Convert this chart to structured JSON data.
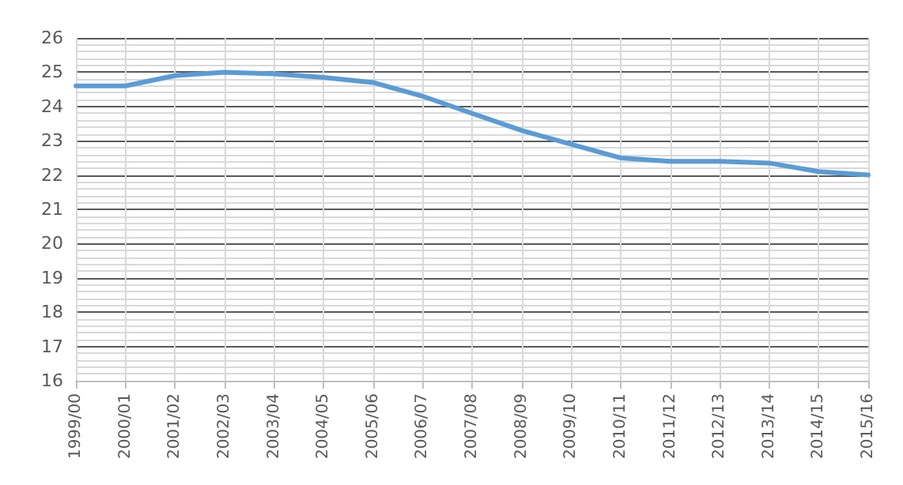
{
  "chart_data": {
    "type": "line",
    "categories": [
      "1999/00",
      "2000/01",
      "2001/02",
      "2002/03",
      "2003/04",
      "2004/05",
      "2005/06",
      "2006/07",
      "2007/08",
      "2008/09",
      "2009/10",
      "2010/11",
      "2011/12",
      "2012/13",
      "2013/14",
      "2014/15",
      "2015/16"
    ],
    "series": [
      {
        "color": "#5b9bd5",
        "values": [
          24.6,
          24.6,
          24.9,
          25.0,
          24.95,
          24.85,
          24.7,
          24.3,
          23.8,
          23.3,
          22.9,
          22.5,
          22.4,
          22.4,
          22.35,
          22.1,
          22.0
        ]
      }
    ],
    "ylim": [
      16,
      26
    ],
    "yticks": [
      16,
      17,
      18,
      19,
      20,
      21,
      22,
      23,
      24,
      25,
      26
    ],
    "grid": true,
    "marker": "none",
    "line_style": "solid"
  }
}
